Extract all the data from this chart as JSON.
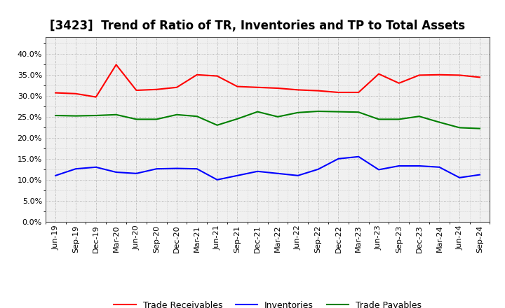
{
  "title": "[3423]  Trend of Ratio of TR, Inventories and TP to Total Assets",
  "labels": [
    "Jun-19",
    "Sep-19",
    "Dec-19",
    "Mar-20",
    "Jun-20",
    "Sep-20",
    "Dec-20",
    "Mar-21",
    "Jun-21",
    "Sep-21",
    "Dec-21",
    "Mar-22",
    "Jun-22",
    "Sep-22",
    "Dec-22",
    "Mar-23",
    "Jun-23",
    "Sep-23",
    "Dec-23",
    "Mar-24",
    "Jun-24",
    "Sep-24"
  ],
  "trade_receivables": [
    0.307,
    0.305,
    0.297,
    0.374,
    0.313,
    0.315,
    0.32,
    0.35,
    0.347,
    0.322,
    0.32,
    0.318,
    0.314,
    0.312,
    0.308,
    0.308,
    0.352,
    0.33,
    0.349,
    0.35,
    0.349,
    0.344
  ],
  "inventories": [
    0.11,
    0.126,
    0.13,
    0.118,
    0.115,
    0.126,
    0.127,
    0.126,
    0.1,
    0.11,
    0.12,
    0.115,
    0.11,
    0.125,
    0.15,
    0.155,
    0.124,
    0.133,
    0.133,
    0.13,
    0.105,
    0.112
  ],
  "trade_payables": [
    0.253,
    0.252,
    0.253,
    0.255,
    0.244,
    0.244,
    0.255,
    0.251,
    0.23,
    0.245,
    0.262,
    0.25,
    0.26,
    0.263,
    0.262,
    0.261,
    0.244,
    0.244,
    0.251,
    0.237,
    0.224,
    0.222
  ],
  "tr_color": "#ff0000",
  "inv_color": "#0000ff",
  "tp_color": "#008000",
  "ylim": [
    0.0,
    0.44
  ],
  "yticks": [
    0.0,
    0.05,
    0.1,
    0.15,
    0.2,
    0.25,
    0.3,
    0.35,
    0.4
  ],
  "bg_color": "#ffffff",
  "plot_bg_color": "#f0f0f0",
  "grid_color": "#888888",
  "title_fontsize": 12,
  "tick_fontsize": 8,
  "legend_labels": [
    "Trade Receivables",
    "Inventories",
    "Trade Payables"
  ]
}
